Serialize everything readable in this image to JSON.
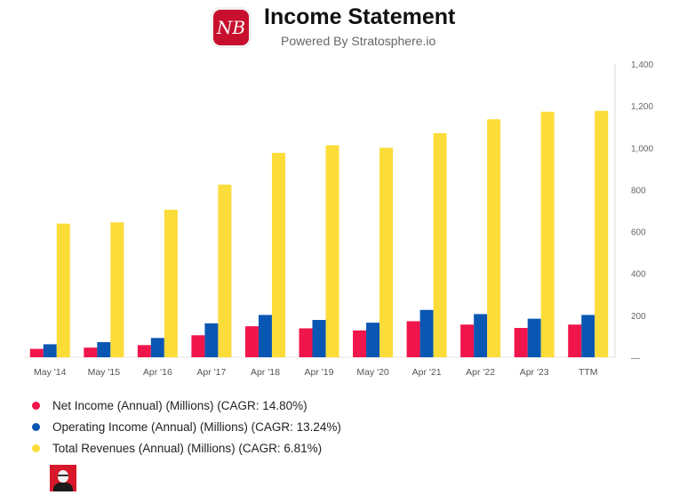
{
  "header": {
    "logo_text": "NB",
    "title": "Income Statement",
    "subtitle": "Powered By Stratosphere.io"
  },
  "chart_data": {
    "type": "bar",
    "categories": [
      "May '14",
      "May '15",
      "Apr '16",
      "Apr '17",
      "Apr '18",
      "Apr '19",
      "May '20",
      "Apr '21",
      "Apr '22",
      "Apr '23",
      "TTM"
    ],
    "series": [
      {
        "name": "Net Income (Annual) (Millions) (CAGR: 14.80%)",
        "color": "#f0154b",
        "values": [
          40,
          46,
          58,
          105,
          148,
          138,
          128,
          172,
          156,
          140,
          156
        ]
      },
      {
        "name": "Operating Income (Annual) (Millions) (CAGR: 13.24%)",
        "color": "#0a56b3",
        "values": [
          62,
          72,
          92,
          162,
          202,
          178,
          165,
          226,
          206,
          184,
          202
        ]
      },
      {
        "name": "Total Revenues (Annual) (Millions) (CAGR: 6.81%)",
        "color": "#fbdc39",
        "values": [
          638,
          644,
          704,
          824,
          976,
          1012,
          1000,
          1070,
          1136,
          1172,
          1176
        ]
      }
    ],
    "ylim": [
      0,
      1400
    ],
    "yticks": [
      "1,400",
      "1,200",
      "1,000",
      "800",
      "600",
      "400",
      "200",
      "—"
    ],
    "ytick_values": [
      1400,
      1200,
      1000,
      800,
      600,
      400,
      200,
      0
    ],
    "y_axis_side": "right",
    "grid": false,
    "legend_position": "bottom-left"
  },
  "legend": [
    {
      "label": "Net Income (Annual) (Millions) (CAGR: 14.80%)",
      "color": "#f0154b"
    },
    {
      "label": "Operating Income (Annual) (Millions) (CAGR: 13.24%)",
      "color": "#0a56b3"
    },
    {
      "label": "Total Revenues (Annual) (Millions) (CAGR: 6.81%)",
      "color": "#fbdc39"
    }
  ]
}
